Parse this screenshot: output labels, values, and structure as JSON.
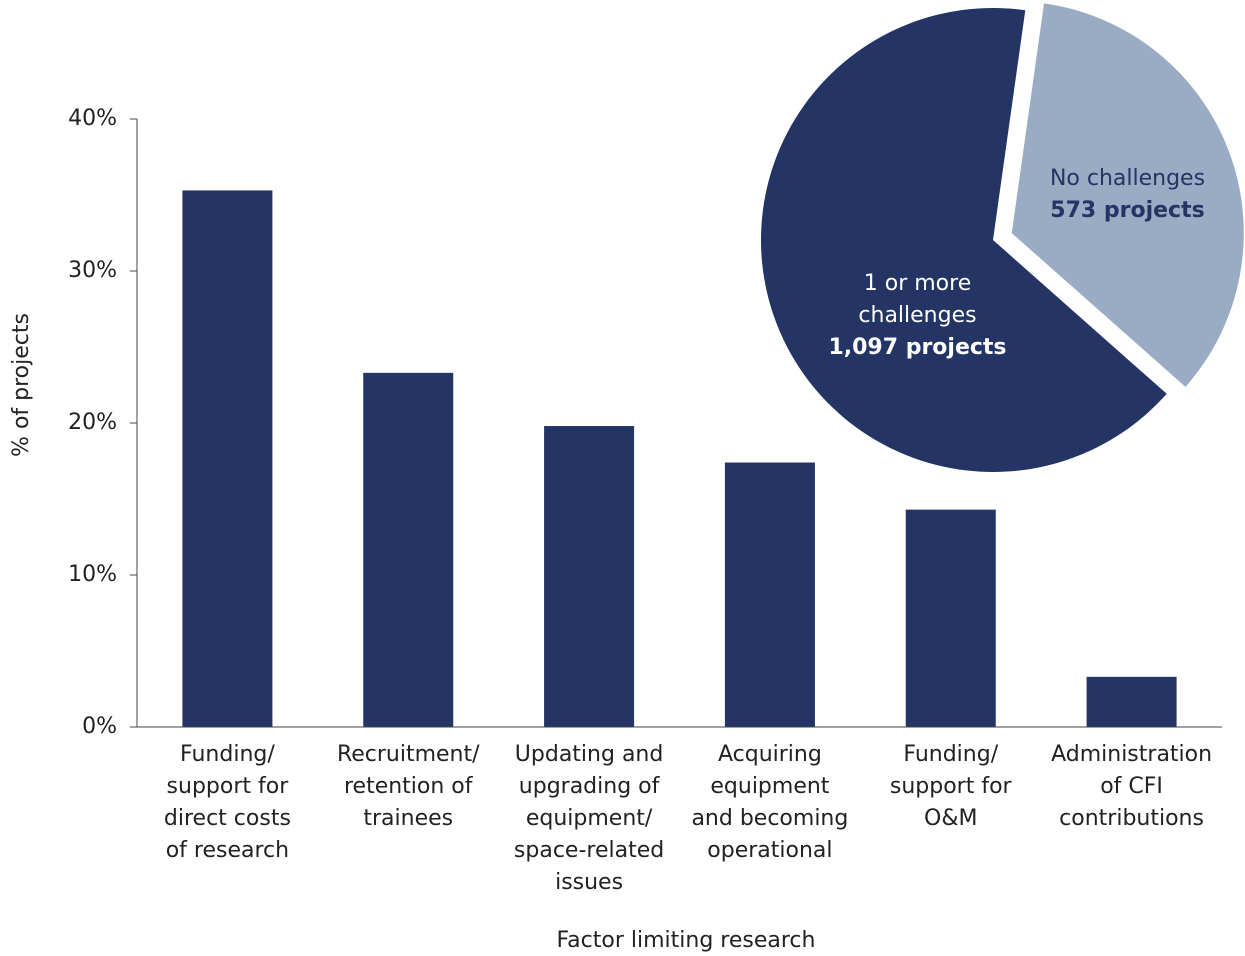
{
  "chart_data": [
    {
      "type": "bar",
      "y_label": "% of projects",
      "x_label": "Factor limiting research",
      "categories": [
        "Funding/\nsupport for\ndirect costs\nof research",
        "Recruitment/\nretention of\ntrainees",
        "Updating and\nupgrading of\nequipment/\nspace-related\nissues",
        "Acquiring\nequipment\nand becoming\noperational",
        "Funding/\nsupport for\nO&M",
        "Administration\nof CFI\ncontributions"
      ],
      "values": [
        35.3,
        23.3,
        19.8,
        17.4,
        14.3,
        3.3
      ],
      "color": "#233465",
      "ylim": [
        0,
        40
      ],
      "yticks": [
        {
          "value": 0,
          "label": "0%"
        },
        {
          "value": 10,
          "label": "10%"
        },
        {
          "value": 20,
          "label": "20%"
        },
        {
          "value": 30,
          "label": "30%"
        },
        {
          "value": 40,
          "label": "40%"
        }
      ],
      "grid": false
    },
    {
      "type": "pie",
      "labels": [
        "1 or more\nchallenges",
        "No challenges"
      ],
      "values": [
        1097,
        573
      ],
      "value_labels": [
        "1,097 projects",
        "573 projects"
      ],
      "colors": [
        "#233465",
        "#9aabc4"
      ]
    }
  ]
}
